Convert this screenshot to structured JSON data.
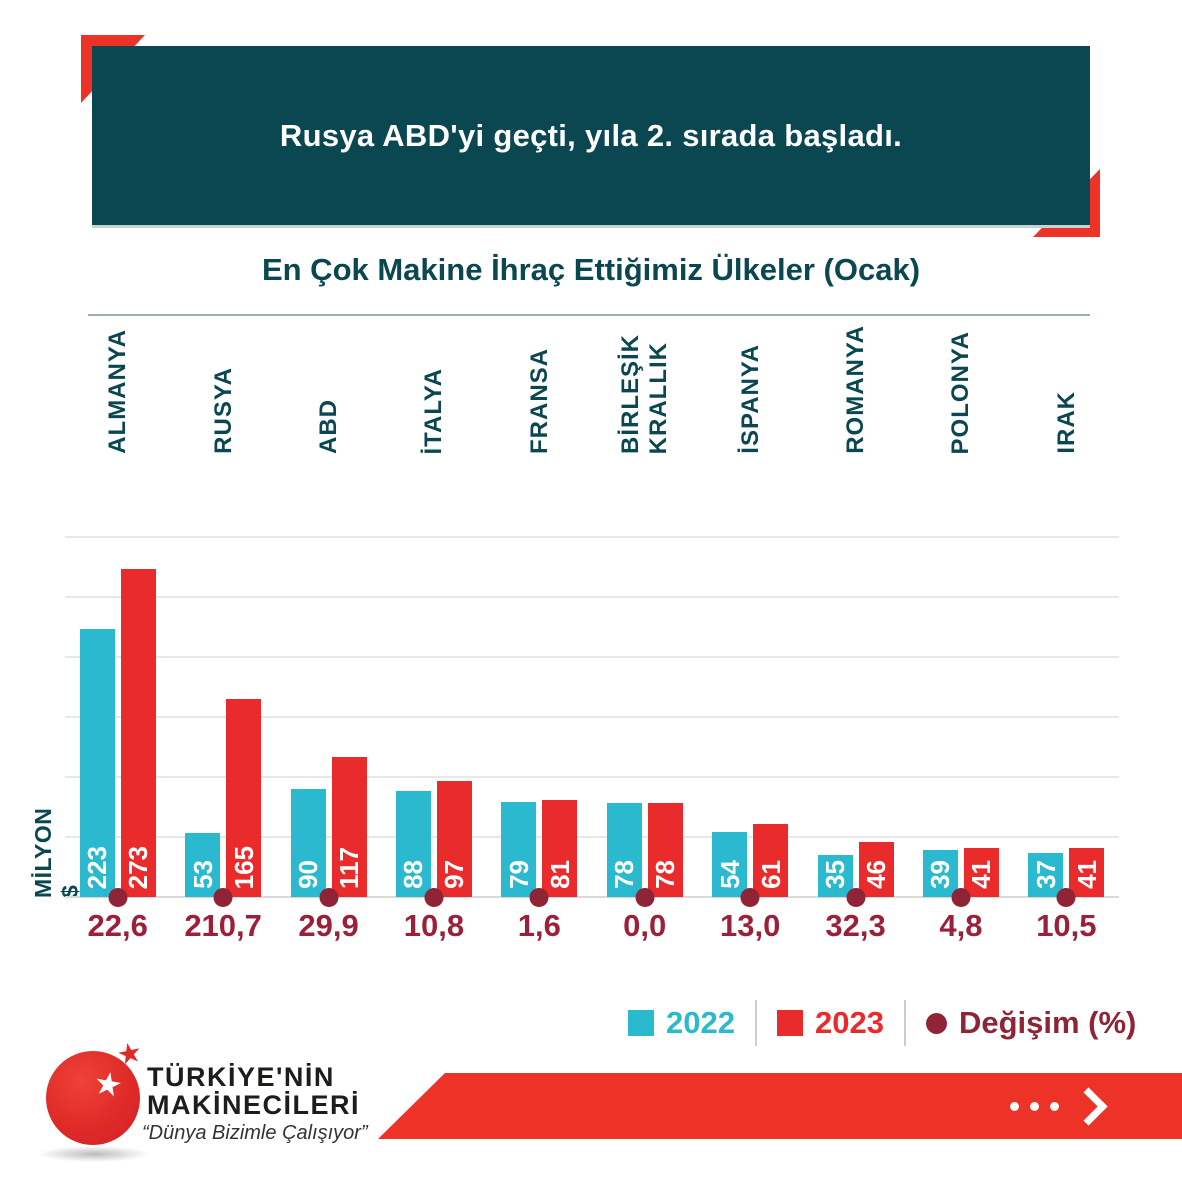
{
  "header": {
    "title": "Rusya ABD'yi geçti, yıla 2. sırada başladı."
  },
  "subtitle": "En Çok Makine İhraç Ettiğimiz Ülkeler (Ocak)",
  "chart_data": {
    "type": "bar",
    "title": "En Çok Makine İhraç Ettiğimiz Ülkeler (Ocak)",
    "ylabel": "MİLYON $",
    "ylim": [
      0,
      300
    ],
    "gridline_step": 50,
    "grid": true,
    "legend_position": "bottom-right",
    "categories": [
      "ALMANYA",
      "RUSYA",
      "ABD",
      "İTALYA",
      "FRANSA",
      "BİRLEŞİK KRALLIK",
      "İSPANYA",
      "ROMANYA",
      "POLONYA",
      "IRAK"
    ],
    "series": [
      {
        "name": "2022",
        "color": "#2BB9D0",
        "values": [
          223,
          53,
          90,
          88,
          79,
          78,
          54,
          35,
          39,
          37
        ]
      },
      {
        "name": "2023",
        "color": "#E92B2C",
        "values": [
          273,
          165,
          117,
          97,
          81,
          78,
          61,
          46,
          41,
          41
        ]
      }
    ],
    "change_series": {
      "name": "Değişim (%)",
      "color": "#8E2435",
      "values": [
        "22,6",
        "210,7",
        "29,9",
        "10,8",
        "1,6",
        "0,0",
        "13,0",
        "32,3",
        "4,8",
        "10,5"
      ]
    }
  },
  "footer": {
    "brand_line1": "TÜRKİYE'NİN",
    "brand_line2": "MAKİNECİLERİ",
    "tagline": "“Dünya Bizimle Çalışıyor”"
  },
  "icons": {
    "star_white": "★",
    "star_red": "★"
  },
  "colors": {
    "banner_teal": "#0B4750",
    "accent_red": "#ED3327",
    "bar_2022": "#2BB9D0",
    "bar_2023": "#E92B2C",
    "change_maroon": "#8E2435",
    "pct_text": "#9A2139",
    "grid_gray": "#E7E7E7"
  }
}
